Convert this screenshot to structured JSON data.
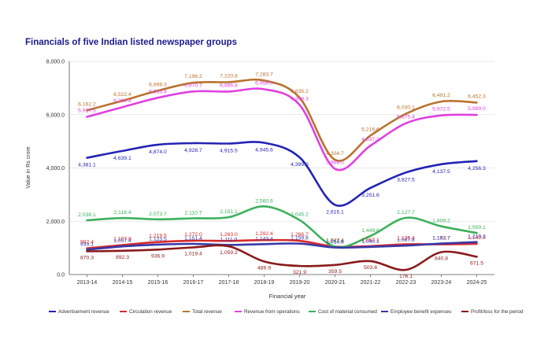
{
  "chart_data": {
    "type": "line",
    "title": "Financials of five Indian listed newspaper groups",
    "xlabel": "Financial year",
    "ylabel": "Value in Rs crore",
    "ylim": [
      0,
      8000
    ],
    "yticks": [
      "0.0",
      "2,000.0",
      "4,000.0",
      "6,000.0",
      "8,000.0"
    ],
    "grid": "horizontal",
    "legend_position": "bottom",
    "categories": [
      "2013-14",
      "2014-15",
      "2015-16",
      "2016-17",
      "2017-18",
      "2018-19",
      "2019-20",
      "2020-21",
      "2021-22",
      "2022-23",
      "2023-24",
      "2024-25"
    ],
    "series": [
      {
        "name": "Advertisement revenue",
        "color": "#2323b4",
        "values": [
          4381.1,
          4639.1,
          4874.0,
          4928.7,
          4915.5,
          4945.6,
          4399.0,
          2615.1,
          3251.6,
          3827.5,
          4137.5,
          4256.3
        ],
        "labels": [
          "4,381.1",
          "4,639.1",
          "4,874.0",
          "4,928.7",
          "4,915.5",
          "4,945.6",
          "4,399.0",
          "2,615.1",
          "3,251.6",
          "3,827.5",
          "4,137.5",
          "4,256.3"
        ]
      },
      {
        "name": "Circulation revenue",
        "color": "#d62a2a",
        "values": [
          982.4,
          1107.8,
          1219.5,
          1272.0,
          1263.0,
          1292.4,
          1266.7,
          1047.4,
          1067.1,
          1135.4,
          1133.7,
          1149.9
        ],
        "labels": [
          "982.4",
          "1,107.8",
          "1,219.5",
          "1,272.0",
          "1,263.0",
          "1,292.4",
          "1,266.7",
          "1,047.4",
          "1,067.1",
          "1,135.4",
          "1,133.7",
          "1,149.9"
        ]
      },
      {
        "name": "Total revenue",
        "color": "#b8732e",
        "values": [
          6162.2,
          6522.4,
          6898.3,
          7196.2,
          7220.8,
          7283.7,
          6635.2,
          4304.7,
          5216.6,
          6030.1,
          6491.2,
          6452.3
        ],
        "labels": [
          "6,162.2",
          "6,522.4",
          "6,898.3",
          "7,196.2",
          "7,220.8",
          "7,283.7",
          "6,635.2",
          "4,304.7",
          "5,216.6",
          "6,030.1",
          "6,491.2",
          "6,452.3"
        ]
      },
      {
        "name": "Revenue from operations",
        "color": "#e040e0",
        "values": [
          5917.5,
          6280.8,
          6633.8,
          6870.7,
          6866.8,
          6956.0,
          6368.3,
          3968.0,
          4837.2,
          5675.4,
          5972.5,
          5989.0
        ],
        "labels": [
          "5,917.5",
          "6,280.8",
          "6,633.8",
          "6,870.7",
          "6,866.8",
          "6,956.0",
          "6,368.3",
          "3,968.0",
          "4,837.2",
          "5,675.4",
          "5,972.5",
          "5,989.0"
        ]
      },
      {
        "name": "Cost of material consumed",
        "color": "#3cb15c",
        "values": [
          2038.1,
          2118.4,
          2073.7,
          2110.7,
          2151.1,
          2560.6,
          2045.2,
          1047.4,
          1449.6,
          2127.7,
          1809.2,
          1559.1
        ],
        "labels": [
          "2,038.1",
          "2,118.4",
          "2,073.7",
          "2,110.7",
          "2,151.1",
          "2,560.6",
          "2,045.2",
          "1,047.4",
          "1,449.6",
          "2,127.7",
          "1,809.2",
          "1,559.1"
        ]
      },
      {
        "name": "Employee benefit expenses",
        "color": "#3838a8",
        "values": [
          933.1,
          1057.4,
          1123.5,
          1151.4,
          1111.0,
          1143.4,
          1159.8,
          1014.6,
          1040.1,
          1087.8,
          1162.7,
          1219.2
        ],
        "labels": [
          "933.1",
          "1,057.4",
          "1,123.5",
          "1,151.4",
          "1,111.0",
          "1,143.4",
          "1,159.8",
          "1,014.6",
          "1,040.1",
          "1,087.8",
          "1,162.7",
          "1,219.2"
        ]
      },
      {
        "name": "Profit/loss for the period",
        "color": "#8b1a1a",
        "values": [
          870.3,
          892.3,
          936.9,
          1019.4,
          1059.2,
          489.9,
          321.9,
          359.5,
          503.8,
          176.1,
          840.8,
          671.5
        ],
        "labels": [
          "870.3",
          "892.3",
          "936.9",
          "1,019.4",
          "1,059.2",
          "489.9",
          "321.9",
          "359.5",
          "503.8",
          "176.1",
          "840.8",
          "671.5"
        ]
      }
    ]
  }
}
